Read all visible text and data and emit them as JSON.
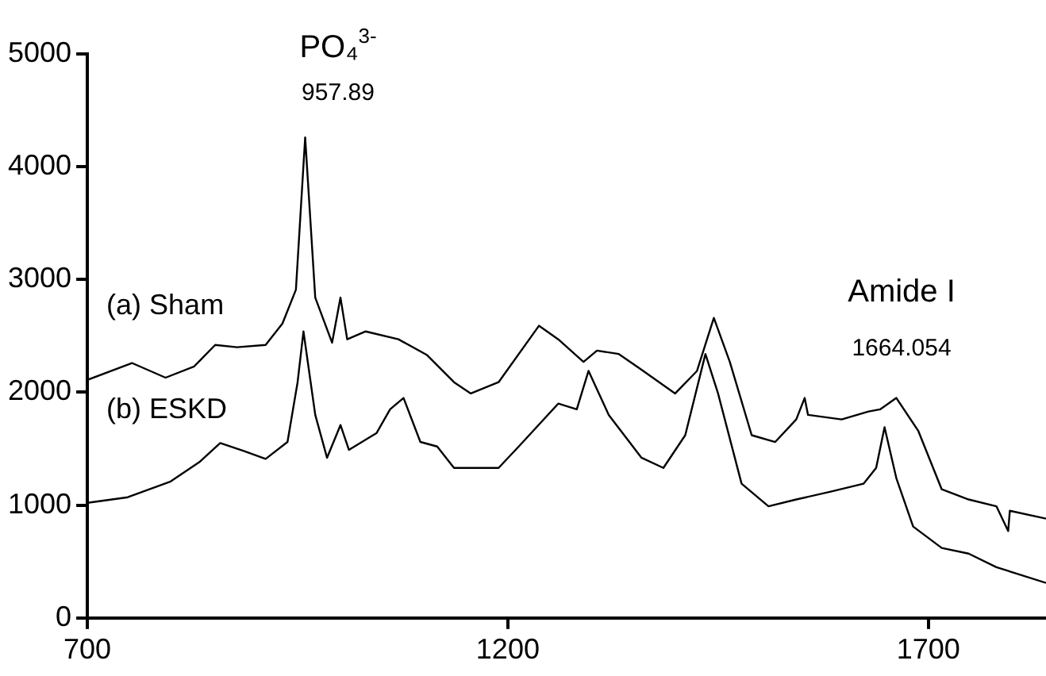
{
  "chart_data": {
    "type": "line",
    "xlim": [
      700,
      1840
    ],
    "xticks": [
      700,
      1200,
      1700
    ],
    "ylim": [
      0,
      5000
    ],
    "yticks": [
      0,
      1000,
      2000,
      3000,
      4000,
      5000
    ],
    "grid": false,
    "legend": false,
    "marker": "none",
    "line_style": "solid",
    "series": [
      {
        "name": "(a) Sham",
        "color": "#000000",
        "x": [
          700,
          753,
          793,
          827,
          852,
          878,
          912,
          932,
          948,
          959,
          971,
          991,
          1001,
          1009,
          1031,
          1070,
          1104,
          1136,
          1156,
          1189,
          1237,
          1260,
          1290,
          1306,
          1332,
          1359,
          1399,
          1425,
          1445,
          1464,
          1490,
          1518,
          1543,
          1553,
          1557,
          1597,
          1629,
          1643,
          1662,
          1688,
          1716,
          1748,
          1781,
          1795,
          1797,
          1840
        ],
        "values": [
          2110,
          2260,
          2130,
          2230,
          2420,
          2400,
          2420,
          2610,
          2910,
          4260,
          2840,
          2440,
          2840,
          2470,
          2540,
          2470,
          2330,
          2090,
          1990,
          2090,
          2590,
          2470,
          2270,
          2370,
          2340,
          2200,
          1990,
          2190,
          2660,
          2270,
          1620,
          1560,
          1760,
          1950,
          1800,
          1760,
          1830,
          1850,
          1950,
          1660,
          1140,
          1050,
          990,
          770,
          950,
          880
        ]
      },
      {
        "name": "(b) ESKD",
        "color": "#000000",
        "x": [
          700,
          748,
          799,
          833,
          858,
          886,
          912,
          938,
          950,
          957,
          971,
          985,
          1001,
          1011,
          1044,
          1060,
          1076,
          1096,
          1116,
          1136,
          1189,
          1213,
          1260,
          1282,
          1296,
          1320,
          1359,
          1385,
          1411,
          1435,
          1450,
          1478,
          1510,
          1543,
          1584,
          1623,
          1638,
          1648,
          1662,
          1682,
          1716,
          1748,
          1781,
          1840
        ],
        "values": [
          1020,
          1070,
          1210,
          1380,
          1550,
          1480,
          1410,
          1560,
          2090,
          2540,
          1800,
          1420,
          1710,
          1490,
          1640,
          1850,
          1950,
          1560,
          1520,
          1330,
          1330,
          1520,
          1900,
          1850,
          2190,
          1800,
          1420,
          1330,
          1620,
          2340,
          1990,
          1190,
          990,
          1050,
          1120,
          1190,
          1330,
          1690,
          1240,
          810,
          620,
          570,
          450,
          310
        ]
      }
    ],
    "annotations": [
      "PO₄$^{3-}$",
      "957.89",
      "Amide I",
      "1664.054"
    ]
  }
}
